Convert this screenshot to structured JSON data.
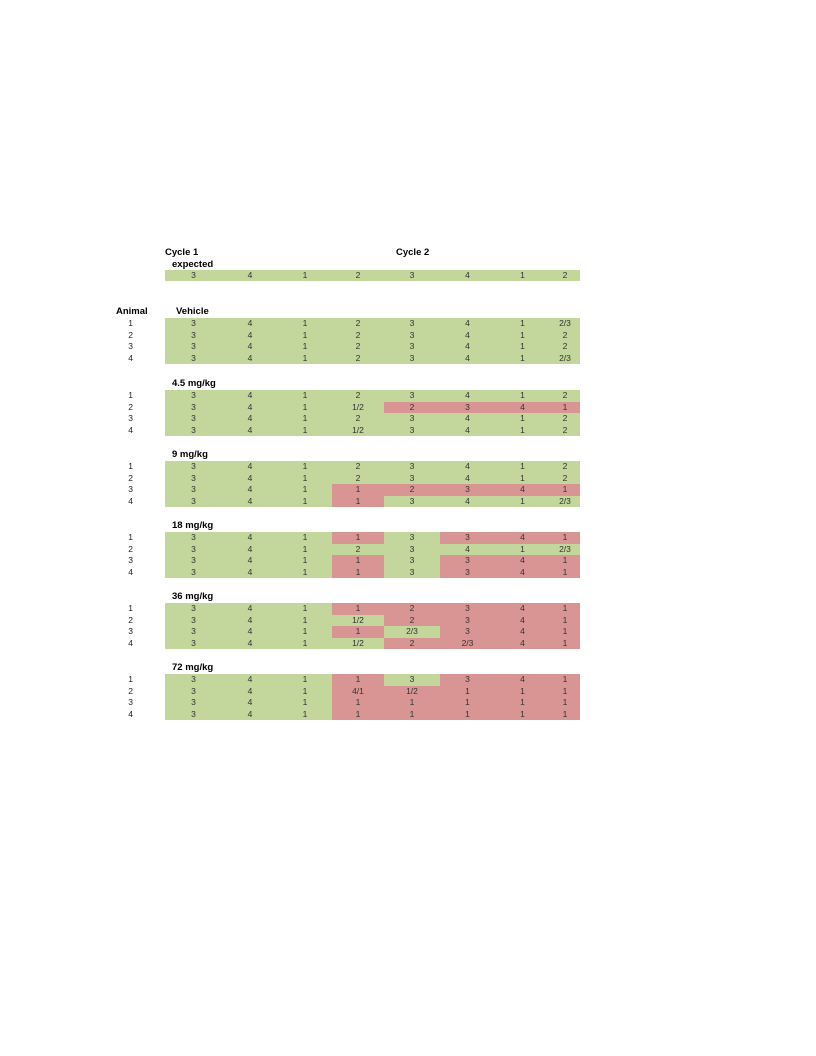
{
  "header": {
    "cycle1": "Cycle 1",
    "expected_label": "expected",
    "cycle2": "Cycle 2",
    "animal": "Animal"
  },
  "colors": {
    "normal": "#c3d69b",
    "abnormal": "#d99594"
  },
  "expected": [
    "3",
    "4",
    "1",
    "2",
    "3",
    "4",
    "1",
    "2"
  ],
  "groups": [
    {
      "label": "Vehicle",
      "rows": [
        {
          "animal": "1",
          "cells": [
            "3",
            "4",
            "1",
            "2",
            "3",
            "4",
            "1",
            "2/3"
          ],
          "abnormal": []
        },
        {
          "animal": "2",
          "cells": [
            "3",
            "4",
            "1",
            "2",
            "3",
            "4",
            "1",
            "2"
          ],
          "abnormal": []
        },
        {
          "animal": "3",
          "cells": [
            "3",
            "4",
            "1",
            "2",
            "3",
            "4",
            "1",
            "2"
          ],
          "abnormal": []
        },
        {
          "animal": "4",
          "cells": [
            "3",
            "4",
            "1",
            "2",
            "3",
            "4",
            "1",
            "2/3"
          ],
          "abnormal": []
        }
      ]
    },
    {
      "label": "4.5 mg/kg",
      "rows": [
        {
          "animal": "1",
          "cells": [
            "3",
            "4",
            "1",
            "2",
            "3",
            "4",
            "1",
            "2"
          ],
          "abnormal": []
        },
        {
          "animal": "2",
          "cells": [
            "3",
            "4",
            "1",
            "1/2",
            "2",
            "3",
            "4",
            "1"
          ],
          "abnormal": [
            4,
            5,
            6,
            7
          ]
        },
        {
          "animal": "3",
          "cells": [
            "3",
            "4",
            "1",
            "2",
            "3",
            "4",
            "1",
            "2"
          ],
          "abnormal": []
        },
        {
          "animal": "4",
          "cells": [
            "3",
            "4",
            "1",
            "1/2",
            "3",
            "4",
            "1",
            "2"
          ],
          "abnormal": []
        }
      ]
    },
    {
      "label": "9 mg/kg",
      "rows": [
        {
          "animal": "1",
          "cells": [
            "3",
            "4",
            "1",
            "2",
            "3",
            "4",
            "1",
            "2"
          ],
          "abnormal": []
        },
        {
          "animal": "2",
          "cells": [
            "3",
            "4",
            "1",
            "2",
            "3",
            "4",
            "1",
            "2"
          ],
          "abnormal": []
        },
        {
          "animal": "3",
          "cells": [
            "3",
            "4",
            "1",
            "1",
            "2",
            "3",
            "4",
            "1"
          ],
          "abnormal": [
            3,
            4,
            5,
            6,
            7
          ]
        },
        {
          "animal": "4",
          "cells": [
            "3",
            "4",
            "1",
            "1",
            "3",
            "4",
            "1",
            "2/3"
          ],
          "abnormal": [
            3
          ]
        }
      ]
    },
    {
      "label": "18 mg/kg",
      "rows": [
        {
          "animal": "1",
          "cells": [
            "3",
            "4",
            "1",
            "1",
            "3",
            "3",
            "4",
            "1"
          ],
          "abnormal": [
            3,
            5,
            6,
            7
          ]
        },
        {
          "animal": "2",
          "cells": [
            "3",
            "4",
            "1",
            "2",
            "3",
            "4",
            "1",
            "2/3"
          ],
          "abnormal": []
        },
        {
          "animal": "3",
          "cells": [
            "3",
            "4",
            "1",
            "1",
            "3",
            "3",
            "4",
            "1"
          ],
          "abnormal": [
            3,
            5,
            6,
            7
          ]
        },
        {
          "animal": "4",
          "cells": [
            "3",
            "4",
            "1",
            "1",
            "3",
            "3",
            "4",
            "1"
          ],
          "abnormal": [
            3,
            5,
            6,
            7
          ]
        }
      ]
    },
    {
      "label": "36 mg/kg",
      "rows": [
        {
          "animal": "1",
          "cells": [
            "3",
            "4",
            "1",
            "1",
            "2",
            "3",
            "4",
            "1"
          ],
          "abnormal": [
            3,
            4,
            5,
            6,
            7
          ]
        },
        {
          "animal": "2",
          "cells": [
            "3",
            "4",
            "1",
            "1/2",
            "2",
            "3",
            "4",
            "1"
          ],
          "abnormal": [
            4,
            5,
            6,
            7
          ]
        },
        {
          "animal": "3",
          "cells": [
            "3",
            "4",
            "1",
            "1",
            "2/3",
            "3",
            "4",
            "1"
          ],
          "abnormal": [
            3,
            5,
            6,
            7
          ]
        },
        {
          "animal": "4",
          "cells": [
            "3",
            "4",
            "1",
            "1/2",
            "2",
            "2/3",
            "4",
            "1"
          ],
          "abnormal": [
            4,
            5,
            6,
            7
          ]
        }
      ]
    },
    {
      "label": "72 mg/kg",
      "rows": [
        {
          "animal": "1",
          "cells": [
            "3",
            "4",
            "1",
            "1",
            "3",
            "3",
            "4",
            "1"
          ],
          "abnormal": [
            3,
            5,
            6,
            7
          ]
        },
        {
          "animal": "2",
          "cells": [
            "3",
            "4",
            "1",
            "4/1",
            "1/2",
            "1",
            "1",
            "1"
          ],
          "abnormal": [
            3,
            4,
            5,
            6,
            7
          ]
        },
        {
          "animal": "3",
          "cells": [
            "3",
            "4",
            "1",
            "1",
            "1",
            "1",
            "1",
            "1"
          ],
          "abnormal": [
            3,
            4,
            5,
            6,
            7
          ]
        },
        {
          "animal": "4",
          "cells": [
            "3",
            "4",
            "1",
            "1",
            "1",
            "1",
            "1",
            "1"
          ],
          "abnormal": [
            3,
            4,
            5,
            6,
            7
          ]
        }
      ]
    }
  ]
}
